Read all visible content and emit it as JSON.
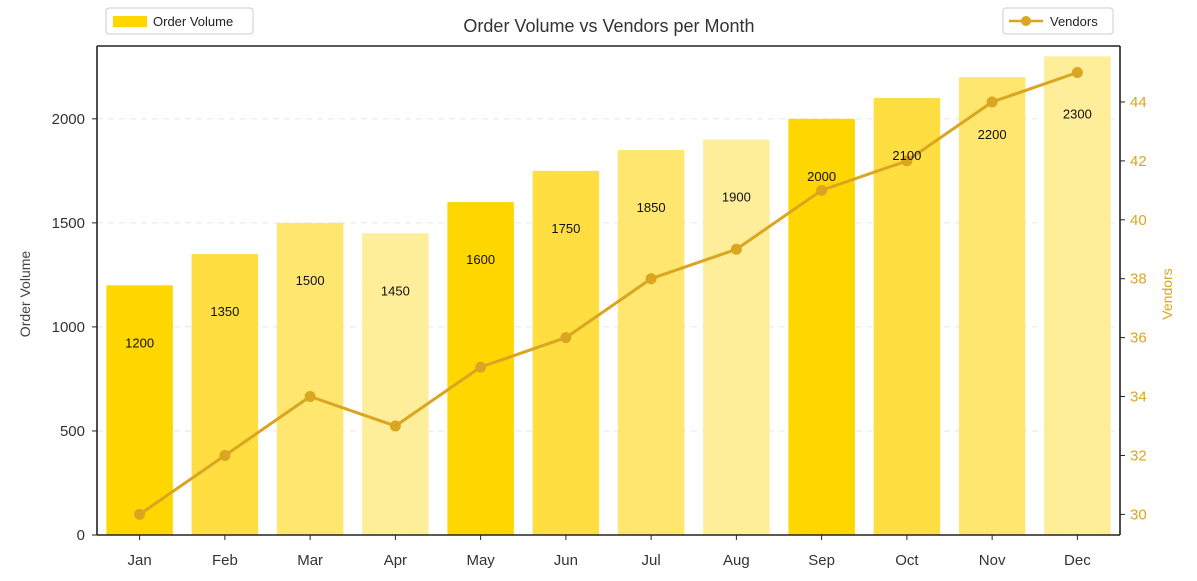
{
  "chart_data": {
    "type": "bar",
    "title": "Order Volume vs Vendors per Month",
    "categories": [
      "Jan",
      "Feb",
      "Mar",
      "Apr",
      "May",
      "Jun",
      "Jul",
      "Aug",
      "Sep",
      "Oct",
      "Nov",
      "Dec"
    ],
    "series": [
      {
        "name": "Order Volume",
        "type": "bar",
        "axis": "left",
        "values": [
          1200,
          1350,
          1500,
          1450,
          1600,
          1750,
          1850,
          1900,
          2000,
          2100,
          2200,
          2300
        ],
        "value_labels": [
          "1200",
          "1350",
          "1500",
          "1450",
          "1600",
          "1750",
          "1850",
          "1900",
          "2000",
          "2100",
          "2200",
          "2300"
        ],
        "colors": [
          "#FFD700",
          "#FFDE42",
          "#FFE66E",
          "#FFEE99",
          "#FFD700",
          "#FFDE42",
          "#FFE66E",
          "#FFEE99",
          "#FFD700",
          "#FFDE42",
          "#FFE66E",
          "#FFEE99"
        ]
      },
      {
        "name": "Vendors",
        "type": "line",
        "axis": "right",
        "values": [
          30,
          32,
          34,
          33,
          35,
          36,
          38,
          39,
          41,
          42,
          44,
          45
        ],
        "color": "#DAA520"
      }
    ],
    "ylabel": "Order Volume",
    "y2label": "Vendors",
    "ylim": [
      0,
      2350
    ],
    "y2lim": [
      29.3,
      45.9
    ],
    "yticks": [
      "0",
      "500",
      "1000",
      "1500",
      "2000"
    ],
    "y2ticks": [
      "30",
      "32",
      "34",
      "36",
      "38",
      "40",
      "42",
      "44"
    ],
    "grid": true,
    "legend": [
      {
        "label": "Order Volume",
        "placement": "top-left"
      },
      {
        "label": "Vendors",
        "placement": "top-right"
      }
    ]
  }
}
